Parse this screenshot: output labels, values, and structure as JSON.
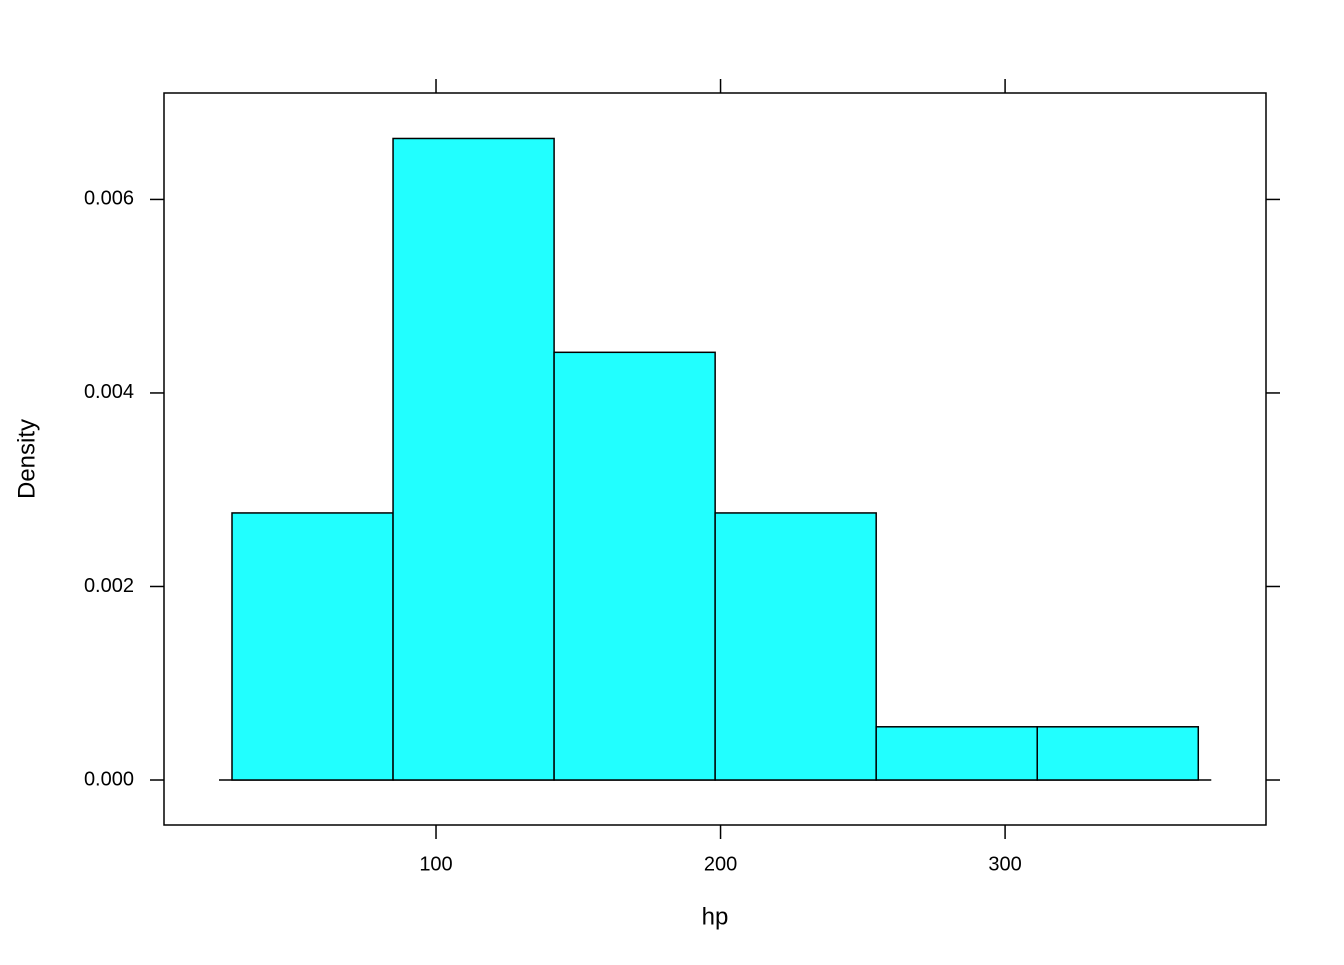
{
  "chart_data": {
    "type": "histogram",
    "xlabel": "hp",
    "ylabel": "Density",
    "bins": [
      28.3,
      84.9,
      141.5,
      198.1,
      254.7,
      311.3,
      367.9
    ],
    "values": [
      0.00276,
      0.00663,
      0.00442,
      0.00276,
      0.00055,
      0.00055
    ],
    "color": "#21ffff",
    "xlim": [
      4.4,
      391.7
    ],
    "xticks": [
      100,
      200,
      300
    ],
    "ylim": [
      -0.000465,
      0.0071
    ],
    "yticks": [
      {
        "value": 0,
        "label": "0.000"
      },
      0.002,
      0.004,
      0.006
    ]
  }
}
